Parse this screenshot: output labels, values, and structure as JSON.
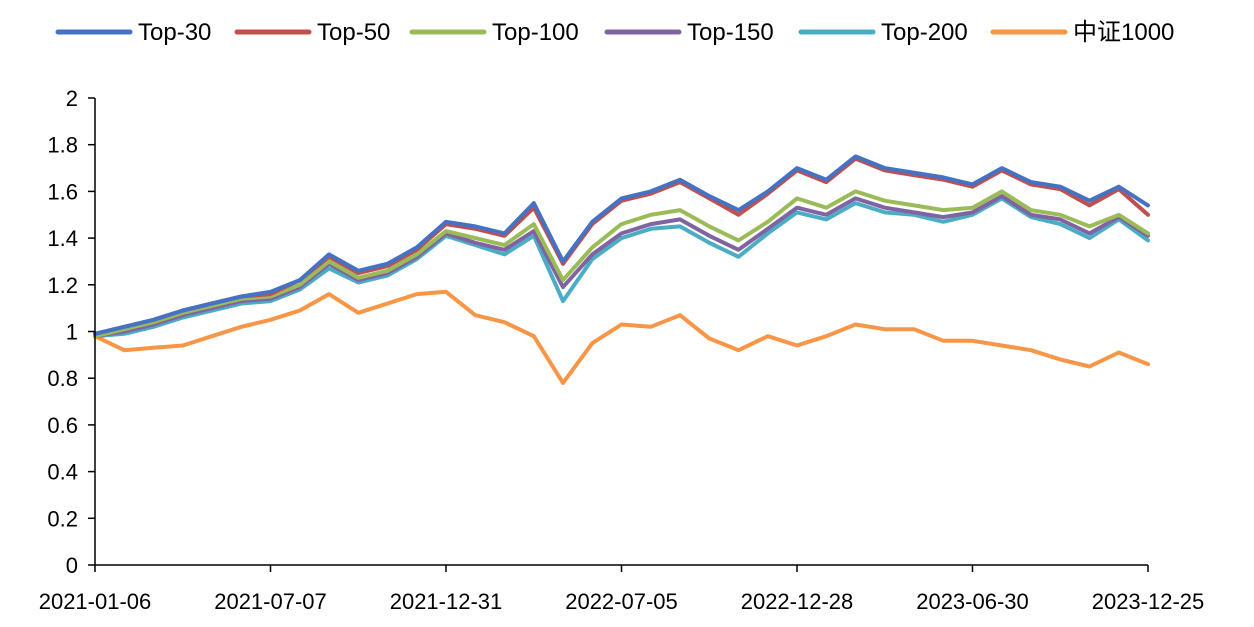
{
  "chart_data": {
    "type": "line",
    "title": "",
    "xlabel": "",
    "ylabel": "",
    "ylim": [
      0,
      2
    ],
    "y_ticks": [
      "0",
      "0.2",
      "0.4",
      "0.6",
      "0.8",
      "1",
      "1.2",
      "1.4",
      "1.6",
      "1.8",
      "2"
    ],
    "x_ticks": [
      "2021-01-06",
      "2021-07-07",
      "2021-12-31",
      "2022-07-05",
      "2022-12-28",
      "2023-06-30",
      "2023-12-25"
    ],
    "grid": false,
    "legend_position": "top",
    "x": [
      "2021-01-06",
      "2021-02-05",
      "2021-03-08",
      "2021-04-07",
      "2021-05-07",
      "2021-06-07",
      "2021-07-07",
      "2021-08-06",
      "2021-09-03",
      "2021-10-08",
      "2021-11-05",
      "2021-12-03",
      "2021-12-31",
      "2022-01-28",
      "2022-02-25",
      "2022-03-25",
      "2022-04-27",
      "2022-05-27",
      "2022-07-05",
      "2022-08-02",
      "2022-08-31",
      "2022-09-30",
      "2022-10-31",
      "2022-11-28",
      "2022-12-28",
      "2023-01-30",
      "2023-03-01",
      "2023-03-31",
      "2023-04-28",
      "2023-05-31",
      "2023-06-30",
      "2023-07-31",
      "2023-08-29",
      "2023-09-26",
      "2023-10-27",
      "2023-11-24",
      "2023-12-25"
    ],
    "series": [
      {
        "name": "Top-30",
        "color": "#4472C4",
        "values": [
          0.99,
          1.02,
          1.05,
          1.09,
          1.12,
          1.15,
          1.17,
          1.22,
          1.33,
          1.26,
          1.29,
          1.36,
          1.47,
          1.45,
          1.42,
          1.55,
          1.3,
          1.47,
          1.57,
          1.6,
          1.65,
          1.58,
          1.52,
          1.6,
          1.7,
          1.65,
          1.75,
          1.7,
          1.68,
          1.66,
          1.63,
          1.7,
          1.64,
          1.62,
          1.56,
          1.62,
          1.54
        ]
      },
      {
        "name": "Top-50",
        "color": "#C0504D",
        "values": [
          0.99,
          1.02,
          1.05,
          1.09,
          1.12,
          1.15,
          1.16,
          1.22,
          1.32,
          1.25,
          1.28,
          1.35,
          1.46,
          1.44,
          1.41,
          1.53,
          1.29,
          1.46,
          1.56,
          1.59,
          1.64,
          1.57,
          1.5,
          1.59,
          1.69,
          1.64,
          1.74,
          1.69,
          1.67,
          1.65,
          1.62,
          1.69,
          1.63,
          1.61,
          1.54,
          1.61,
          1.5
        ]
      },
      {
        "name": "Top-100",
        "color": "#9BBB59",
        "values": [
          0.98,
          1.01,
          1.04,
          1.08,
          1.11,
          1.14,
          1.15,
          1.2,
          1.3,
          1.23,
          1.26,
          1.33,
          1.43,
          1.4,
          1.37,
          1.46,
          1.22,
          1.36,
          1.46,
          1.5,
          1.52,
          1.45,
          1.39,
          1.47,
          1.57,
          1.53,
          1.6,
          1.56,
          1.54,
          1.52,
          1.53,
          1.6,
          1.52,
          1.5,
          1.45,
          1.5,
          1.42
        ]
      },
      {
        "name": "Top-150",
        "color": "#8064A2",
        "values": [
          0.98,
          1.0,
          1.03,
          1.07,
          1.1,
          1.13,
          1.14,
          1.19,
          1.29,
          1.22,
          1.25,
          1.32,
          1.42,
          1.38,
          1.35,
          1.43,
          1.19,
          1.33,
          1.42,
          1.46,
          1.48,
          1.41,
          1.35,
          1.44,
          1.53,
          1.5,
          1.57,
          1.53,
          1.51,
          1.49,
          1.51,
          1.58,
          1.5,
          1.48,
          1.42,
          1.49,
          1.41
        ]
      },
      {
        "name": "Top-200",
        "color": "#4BACC6",
        "values": [
          0.98,
          0.99,
          1.02,
          1.06,
          1.09,
          1.12,
          1.13,
          1.18,
          1.27,
          1.21,
          1.24,
          1.31,
          1.41,
          1.37,
          1.33,
          1.41,
          1.13,
          1.31,
          1.4,
          1.44,
          1.45,
          1.38,
          1.32,
          1.42,
          1.51,
          1.48,
          1.55,
          1.51,
          1.5,
          1.47,
          1.5,
          1.57,
          1.49,
          1.46,
          1.4,
          1.48,
          1.39
        ]
      },
      {
        "name": "中证1000",
        "color": "#F79646",
        "values": [
          0.98,
          0.92,
          0.93,
          0.94,
          0.98,
          1.02,
          1.05,
          1.09,
          1.16,
          1.08,
          1.12,
          1.16,
          1.17,
          1.07,
          1.04,
          0.98,
          0.78,
          0.95,
          1.03,
          1.02,
          1.07,
          0.97,
          0.92,
          0.98,
          0.94,
          0.98,
          1.03,
          1.01,
          1.01,
          0.96,
          0.96,
          0.94,
          0.92,
          0.88,
          0.85,
          0.91,
          0.86
        ]
      }
    ]
  }
}
